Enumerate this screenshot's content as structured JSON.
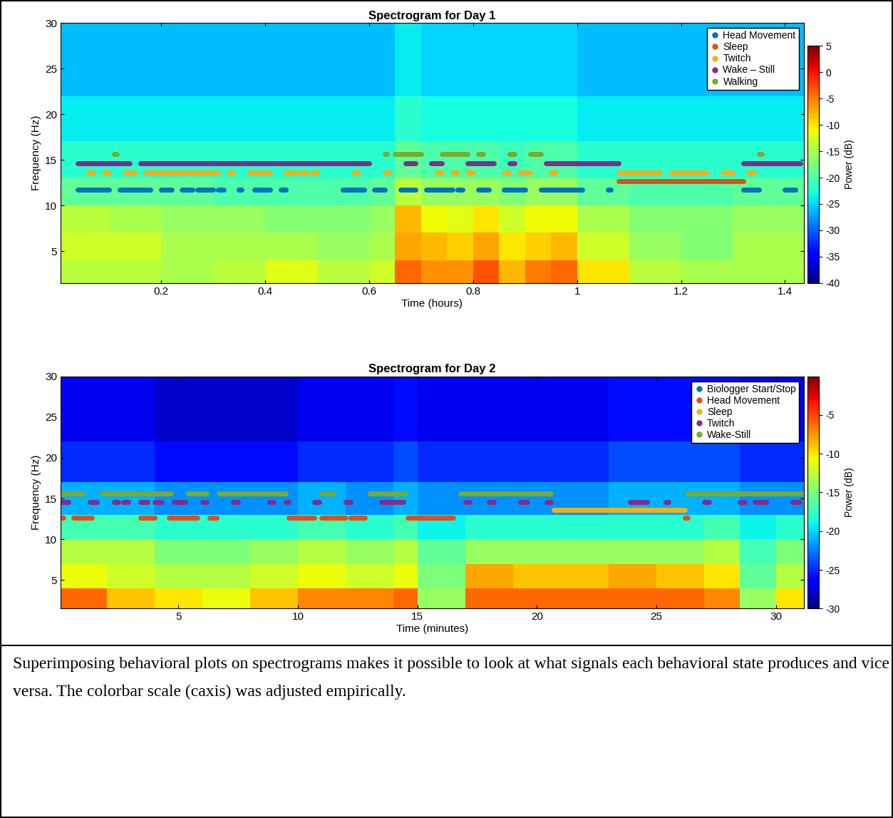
{
  "chart_data": [
    {
      "type": "heatmap",
      "title": "Spectrogram for Day 1",
      "x_label": "Time (hours)",
      "y_label": "Frequency (Hz)",
      "xlim": [
        0.007,
        1.436
      ],
      "xticks": [
        0.2,
        0.4,
        0.6,
        0.8,
        1,
        1.2,
        1.4
      ],
      "ylim": [
        1.5,
        30
      ],
      "yticks": [
        5,
        10,
        15,
        20,
        25,
        30
      ],
      "legend": "upper right",
      "cells": {
        "x": [
          0.007,
          0.1,
          0.2,
          0.3,
          0.4,
          0.5,
          0.6,
          0.65,
          0.7,
          0.75,
          0.8,
          0.85,
          0.9,
          0.95,
          1.0,
          1.1,
          1.2,
          1.3,
          1.436
        ],
        "y": [
          1.5,
          4,
          7,
          10,
          13,
          17,
          22,
          30
        ],
        "values": [
          [
            -14,
            -14,
            -15,
            -14,
            -12,
            -14,
            -13,
            -4,
            -6,
            -6,
            -3,
            -8,
            -5,
            -4,
            -10,
            -14,
            -15,
            -15
          ],
          [
            -13,
            -13,
            -15,
            -15,
            -15,
            -16,
            -15,
            -7,
            -8,
            -9,
            -7,
            -10,
            -9,
            -8,
            -13,
            -16,
            -17,
            -15
          ],
          [
            -14,
            -15,
            -16,
            -16,
            -17,
            -17,
            -16,
            -8,
            -11,
            -12,
            -10,
            -13,
            -11,
            -11,
            -15,
            -17,
            -17,
            -16
          ],
          [
            -19,
            -19,
            -19,
            -20,
            -20,
            -20,
            -19,
            -14,
            -16,
            -16,
            -16,
            -17,
            -16,
            -16,
            -19,
            -20,
            -20,
            -19
          ],
          [
            -22,
            -22,
            -22,
            -22,
            -22,
            -22,
            -22,
            -19,
            -20,
            -20,
            -20,
            -21,
            -20,
            -20,
            -22,
            -22,
            -22,
            -22
          ],
          [
            -24,
            -24,
            -24,
            -24,
            -24,
            -24,
            -24,
            -22,
            -23,
            -23,
            -23,
            -23,
            -23,
            -23,
            -24,
            -24,
            -24,
            -24
          ],
          [
            -26,
            -26,
            -26,
            -26,
            -26,
            -26,
            -26,
            -24,
            -25,
            -25,
            -25,
            -25,
            -25,
            -25,
            -26,
            -26,
            -26,
            -26
          ]
        ]
      },
      "colorbar": {
        "label": "Power (dB)",
        "range": [
          -40,
          5
        ],
        "ticks": [
          -40,
          -35,
          -30,
          -25,
          -20,
          -15,
          -10,
          -5,
          0,
          5
        ]
      },
      "series": [
        {
          "name": "Head Movement",
          "color": "#0072BD",
          "marker": "o",
          "y": 11.7,
          "intervals": [
            [
              0.04,
              0.1
            ],
            [
              0.12,
              0.18
            ],
            [
              0.2,
              0.22
            ],
            [
              0.24,
              0.26
            ],
            [
              0.27,
              0.3
            ],
            [
              0.31,
              0.32
            ],
            [
              0.35,
              0.355
            ],
            [
              0.38,
              0.41
            ],
            [
              0.43,
              0.44
            ],
            [
              0.55,
              0.59
            ],
            [
              0.61,
              0.63
            ],
            [
              0.66,
              0.69
            ],
            [
              0.71,
              0.76
            ],
            [
              0.77,
              0.78
            ],
            [
              0.81,
              0.83
            ],
            [
              0.86,
              0.9
            ],
            [
              0.93,
              1.01
            ],
            [
              1.06,
              1.065
            ],
            [
              1.32,
              1.35
            ],
            [
              1.4,
              1.42
            ]
          ]
        },
        {
          "name": "Sleep",
          "color": "#D95319",
          "marker": "o",
          "y": 12.7,
          "intervals": [
            [
              1.08,
              1.32
            ]
          ]
        },
        {
          "name": "Twitch",
          "color": "#EDB120",
          "marker": "o",
          "y": 13.6,
          "intervals": [
            [
              0.06,
              0.07
            ],
            [
              0.09,
              0.1
            ],
            [
              0.13,
              0.15
            ],
            [
              0.17,
              0.31
            ],
            [
              0.33,
              0.34
            ],
            [
              0.37,
              0.41
            ],
            [
              0.44,
              0.46
            ],
            [
              0.47,
              0.48
            ],
            [
              0.49,
              0.5
            ],
            [
              0.57,
              0.58
            ],
            [
              0.63,
              0.64
            ],
            [
              0.73,
              0.74
            ],
            [
              0.76,
              0.77
            ],
            [
              0.79,
              0.8
            ],
            [
              0.86,
              0.87
            ],
            [
              0.89,
              0.91
            ],
            [
              0.95,
              0.96
            ],
            [
              1.08,
              1.16
            ],
            [
              1.18,
              1.25
            ],
            [
              1.28,
              1.3
            ],
            [
              1.33,
              1.34
            ]
          ]
        },
        {
          "name": "Wake – Still",
          "color": "#7E2F8E",
          "marker": "o",
          "y": 14.6,
          "intervals": [
            [
              0.04,
              0.14
            ],
            [
              0.16,
              0.6
            ],
            [
              0.67,
              0.69
            ],
            [
              0.72,
              0.74
            ],
            [
              0.79,
              0.84
            ],
            [
              0.87,
              0.88
            ],
            [
              0.94,
              1.08
            ],
            [
              1.32,
              1.43
            ]
          ]
        },
        {
          "name": "Walking",
          "color": "#77AC30",
          "marker": "o",
          "y": 15.6,
          "intervals": [
            [
              0.11,
              0.115
            ],
            [
              0.63,
              0.635
            ],
            [
              0.65,
              0.7
            ],
            [
              0.74,
              0.79
            ],
            [
              0.81,
              0.82
            ],
            [
              0.87,
              0.88
            ],
            [
              0.91,
              0.93
            ],
            [
              1.35,
              1.355
            ]
          ]
        }
      ]
    },
    {
      "type": "heatmap",
      "title": "Spectrogram for Day 2",
      "x_label": "Time (minutes)",
      "y_label": "Frequency (Hz)",
      "xlim": [
        0.08,
        31.16
      ],
      "xticks": [
        5,
        10,
        15,
        20,
        25,
        30
      ],
      "ylim": [
        1.5,
        30
      ],
      "yticks": [
        5,
        10,
        15,
        20,
        25,
        30
      ],
      "legend": "upper right",
      "cells": {
        "x": [
          0.08,
          2,
          4,
          6,
          8,
          10,
          12,
          14,
          15,
          17,
          19,
          21,
          23,
          25,
          27,
          28.5,
          30,
          31.16
        ],
        "y": [
          1.5,
          4,
          7,
          10,
          13,
          17,
          22,
          30
        ],
        "values": [
          [
            -6,
            -9,
            -10,
            -11,
            -9,
            -7,
            -7,
            -6,
            -14,
            -6,
            -6,
            -6,
            -6,
            -6,
            -7,
            -14,
            -10
          ],
          [
            -11,
            -12,
            -13,
            -13,
            -12,
            -11,
            -12,
            -11,
            -15,
            -8,
            -9,
            -9,
            -8,
            -9,
            -10,
            -16,
            -13
          ],
          [
            -13,
            -13,
            -15,
            -15,
            -14,
            -13,
            -14,
            -13,
            -16,
            -14,
            -14,
            -14,
            -14,
            -14,
            -13,
            -17,
            -15
          ],
          [
            -17,
            -17,
            -18,
            -18,
            -18,
            -17,
            -18,
            -17,
            -19,
            -18,
            -18,
            -18,
            -18,
            -18,
            -17,
            -19,
            -18
          ],
          [
            -21,
            -21,
            -22,
            -22,
            -22,
            -21,
            -22,
            -21,
            -22,
            -22,
            -22,
            -22,
            -21,
            -21,
            -21,
            -22,
            -22
          ],
          [
            -25,
            -25,
            -26,
            -26,
            -26,
            -25,
            -25,
            -24,
            -25,
            -25,
            -25,
            -25,
            -24,
            -24,
            -24,
            -25,
            -25
          ],
          [
            -27,
            -27,
            -28,
            -28,
            -28,
            -27,
            -27,
            -26,
            -27,
            -27,
            -27,
            -27,
            -26,
            -26,
            -26,
            -27,
            -27
          ]
        ]
      },
      "colorbar": {
        "label": "Power (dB)",
        "range": [
          -30,
          0
        ],
        "ticks": [
          -30,
          -25,
          -20,
          -15,
          -10,
          -5
        ]
      },
      "series": [
        {
          "name": "Biologger Start/Stop",
          "color": "#0072BD",
          "marker": "o",
          "intervals": []
        },
        {
          "name": "Head Movement",
          "color": "#D95319",
          "marker": "o",
          "y": 12.6,
          "intervals": [
            [
              0.1,
              0.2
            ],
            [
              0.6,
              1.4
            ],
            [
              3.4,
              4.0
            ],
            [
              4.6,
              5.8
            ],
            [
              6.3,
              6.6
            ],
            [
              9.6,
              10.7
            ],
            [
              11.0,
              12.0
            ],
            [
              12.2,
              12.8
            ],
            [
              14.6,
              16.5
            ],
            [
              26.2,
              26.3
            ]
          ]
        },
        {
          "name": "Sleep",
          "color": "#EDB120",
          "marker": "o",
          "y": 13.6,
          "intervals": [
            [
              20.7,
              26.2
            ]
          ]
        },
        {
          "name": "Twitch",
          "color": "#7E2F8E",
          "marker": "o",
          "y": 14.6,
          "intervals": [
            [
              0.1,
              0.4
            ],
            [
              1.3,
              1.6
            ],
            [
              2.3,
              2.5
            ],
            [
              2.7,
              2.9
            ],
            [
              3.4,
              3.7
            ],
            [
              4.0,
              4.3
            ],
            [
              4.8,
              5.3
            ],
            [
              6.0,
              6.2
            ],
            [
              7.3,
              7.5
            ],
            [
              8.8,
              9.0
            ],
            [
              9.5,
              9.6
            ],
            [
              10.7,
              10.9
            ],
            [
              12.0,
              12.2
            ],
            [
              13.5,
              14.4
            ],
            [
              17.0,
              17.2
            ],
            [
              18.0,
              18.2
            ],
            [
              19.3,
              19.6
            ],
            [
              20.4,
              20.6
            ],
            [
              23.9,
              24.6
            ],
            [
              25.4,
              25.5
            ],
            [
              27.0,
              27.2
            ],
            [
              28.5,
              28.7
            ],
            [
              29.1,
              29.6
            ],
            [
              30.7,
              31.0
            ]
          ]
        },
        {
          "name": "Wake-Still",
          "color": "#77AC30",
          "marker": "o",
          "y": 15.6,
          "intervals": [
            [
              0.1,
              1.0
            ],
            [
              1.8,
              3.4
            ],
            [
              3.6,
              4.7
            ],
            [
              5.4,
              6.2
            ],
            [
              6.7,
              9.5
            ],
            [
              11.0,
              11.5
            ],
            [
              13.0,
              14.5
            ],
            [
              16.8,
              20.6
            ],
            [
              26.3,
              31.16
            ]
          ]
        }
      ]
    }
  ],
  "caption": "Superimposing behavioral plots on spectrograms makes it possible to look at what signals each behavioral state produces and vice versa. The colorbar scale (caxis) was adjusted empirically."
}
